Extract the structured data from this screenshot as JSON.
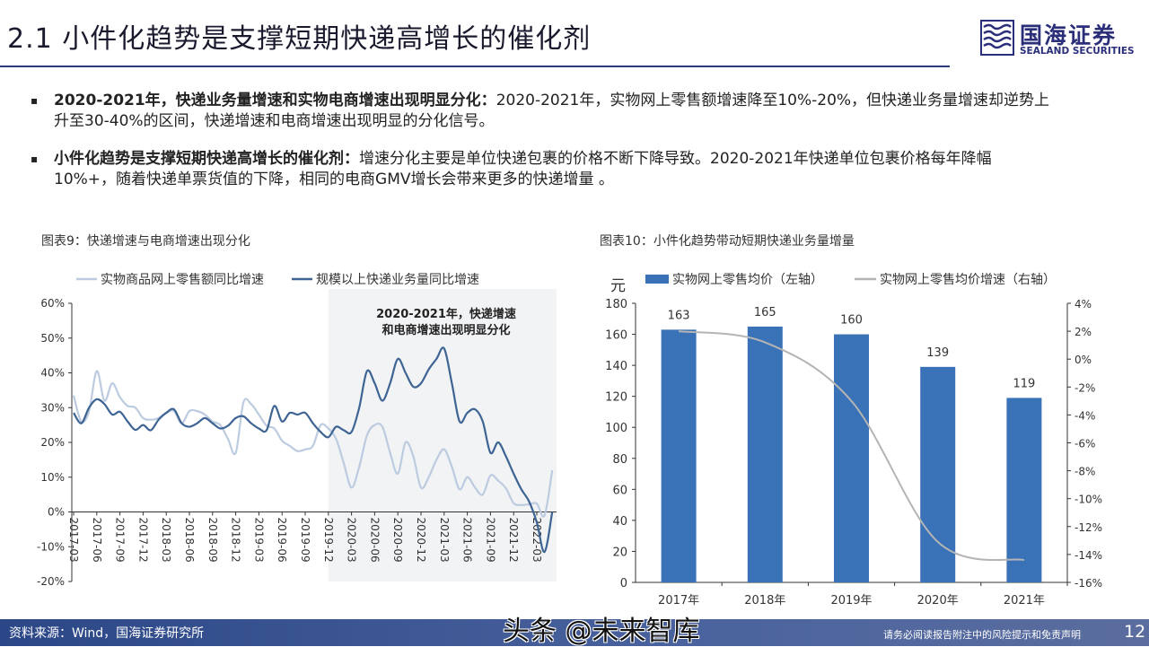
{
  "header": {
    "title": "2.1 小件化趋势是支撑短期快递高增长的催化剂",
    "logo_cn": "国海证券",
    "logo_en": "SEALAND SECURITIES"
  },
  "bullets": [
    {
      "lead": "2020-2021年，快递业务量增速和实物电商增速出现明显分化：",
      "text": "2020-2021年，实物网上零售额增速降至10%-20%，但快递业务量增速却逆势上升至30-40%的区间，快递增速和电商增速出现明显的分化信号。"
    },
    {
      "lead": "小件化趋势是支撑短期快递高增长的催化剂：",
      "text": "增速分化主要是单位快递包裹的价格不断下降导致。2020-2021年快递单位包裹价格每年降幅10%+，随着快递单票货值的下降，相同的电商GMV增长会带来更多的快递增量 。"
    }
  ],
  "bullet_marker": "▪",
  "chart_data": [
    {
      "caption": "图表9：快递增速与电商增速出现分化",
      "type": "line",
      "annotation": [
        "2020-2021年，快递增速",
        "和电商增速出现明显分化"
      ],
      "highlight_range": [
        "2019-12",
        "2022-05"
      ],
      "ylim": [
        -20,
        60
      ],
      "yticks": [
        "-20%",
        "-10%",
        "0%",
        "10%",
        "20%",
        "30%",
        "40%",
        "50%",
        "60%"
      ],
      "xticks": [
        "2017-03",
        "2017-06",
        "2017-09",
        "2017-12",
        "2018-03",
        "2018-06",
        "2018-09",
        "2018-12",
        "2019-03",
        "2019-06",
        "2019-09",
        "2019-12",
        "2020-03",
        "2020-06",
        "2020-09",
        "2020-12",
        "2021-03",
        "2021-06",
        "2021-09",
        "2021-12",
        "2022-03"
      ],
      "legend_position": "top",
      "x": [
        "2017-03",
        "2017-04",
        "2017-05",
        "2017-06",
        "2017-07",
        "2017-08",
        "2017-09",
        "2017-10",
        "2017-11",
        "2017-12",
        "2018-01",
        "2018-02",
        "2018-03",
        "2018-04",
        "2018-05",
        "2018-06",
        "2018-07",
        "2018-08",
        "2018-09",
        "2018-10",
        "2018-11",
        "2018-12",
        "2019-01",
        "2019-02",
        "2019-03",
        "2019-04",
        "2019-05",
        "2019-06",
        "2019-07",
        "2019-08",
        "2019-09",
        "2019-10",
        "2019-11",
        "2019-12",
        "2020-01",
        "2020-02",
        "2020-03",
        "2020-04",
        "2020-05",
        "2020-06",
        "2020-07",
        "2020-08",
        "2020-09",
        "2020-10",
        "2020-11",
        "2020-12",
        "2021-01",
        "2021-02",
        "2021-03",
        "2021-04",
        "2021-05",
        "2021-06",
        "2021-07",
        "2021-08",
        "2021-09",
        "2021-10",
        "2021-11",
        "2021-12",
        "2022-01",
        "2022-02",
        "2022-03",
        "2022-04",
        "2022-05"
      ],
      "series": [
        {
          "name": "实物商品网上零售额同比增速",
          "color": "#bccbdf",
          "values": [
            33.5,
            26,
            29,
            40.5,
            32,
            37,
            33,
            30.5,
            30,
            27,
            26.5,
            27,
            28.5,
            29,
            25.5,
            29,
            29,
            28,
            26,
            25,
            21,
            17,
            31.5,
            31,
            28,
            24.8,
            24,
            20.5,
            19,
            17.5,
            18,
            19,
            25,
            24,
            21,
            14,
            7,
            13,
            22,
            25,
            24.5,
            17,
            11,
            20,
            16,
            7,
            10,
            15,
            18,
            13,
            6.5,
            10,
            7,
            5,
            10.5,
            9,
            6.8,
            2.5,
            2,
            2.2,
            2.4,
            -1,
            12
          ]
        },
        {
          "name": "规模以上快递业务量同比增速",
          "color": "#3e6494",
          "values": [
            28.5,
            25.5,
            30,
            32.4,
            31,
            28,
            28.8,
            26,
            23.6,
            25,
            23.5,
            26.5,
            28.5,
            29.5,
            25.5,
            24.5,
            25.5,
            27,
            25.5,
            24,
            24.8,
            27,
            27.5,
            25.5,
            24,
            23.5,
            30.5,
            26,
            28.5,
            28,
            28.5,
            25.5,
            23,
            21.5,
            24.5,
            23.5,
            23,
            30,
            40.5,
            37,
            32,
            37,
            44,
            40,
            36,
            37,
            41,
            44,
            47,
            37,
            26,
            28.5,
            29.5,
            26,
            17,
            20,
            16,
            11,
            6.5,
            3,
            -3,
            -11.5,
            0
          ]
        }
      ]
    },
    {
      "caption": "图表10：小件化趋势带动短期快递业务量增量",
      "type": "bar+line",
      "y_unit": "元",
      "categories": [
        "2017年",
        "2018年",
        "2019年",
        "2020年",
        "2021年"
      ],
      "ylim": [
        0,
        180
      ],
      "yticks": [
        "0",
        "20",
        "40",
        "60",
        "80",
        "100",
        "120",
        "140",
        "160",
        "180"
      ],
      "y2lim": [
        -16,
        4
      ],
      "y2ticks": [
        "-16%",
        "-14%",
        "-12%",
        "-10%",
        "-8%",
        "-6%",
        "-4%",
        "-2%",
        "0%",
        "2%",
        "4%"
      ],
      "legend_position": "top",
      "series": [
        {
          "name": "实物网上零售均价（左轴）",
          "axis": "left",
          "kind": "bar",
          "color": "#3a72b8",
          "values": [
            163,
            165,
            160,
            139,
            119
          ],
          "labels": [
            "163",
            "165",
            "160",
            "139",
            "119"
          ]
        },
        {
          "name": "实物网上零售均价增速（右轴）",
          "axis": "right",
          "kind": "line",
          "color": "#b4b4b4",
          "values": [
            2.0,
            1.2,
            -3.0,
            -13.1,
            -14.4
          ]
        }
      ]
    }
  ],
  "footer": {
    "source": "资料来源：Wind，国海证券研究所",
    "disclaimer": "请务必阅读报告附注中的风险提示和免责声明",
    "page": "12"
  },
  "watermark": "头条 @未来智库"
}
